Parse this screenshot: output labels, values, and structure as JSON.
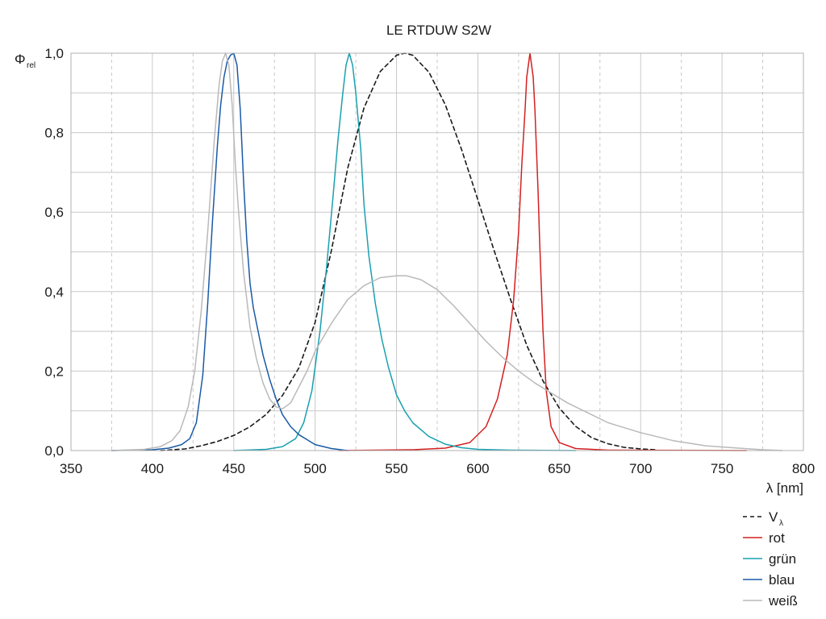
{
  "chart_data": {
    "type": "line",
    "title": "LE RTDUW S2W",
    "ylabel": {
      "symbol": "Φ",
      "subscript": "rel"
    },
    "xlabel": "λ [nm]",
    "xlim": [
      350,
      800
    ],
    "ylim": [
      0,
      1.0
    ],
    "x_ticks": [
      350,
      400,
      450,
      500,
      550,
      600,
      650,
      700,
      750,
      800
    ],
    "x_tick_labels": [
      "350",
      "400",
      "450",
      "500",
      "550",
      "600",
      "650",
      "700",
      "750",
      "800"
    ],
    "y_ticks": [
      0,
      0.2,
      0.4,
      0.6,
      0.8,
      1.0
    ],
    "y_tick_labels": [
      "0,0",
      "0,2",
      "0,4",
      "0,6",
      "0,8",
      "1,0"
    ],
    "grid": true,
    "legend_position": "bottom-right",
    "series": [
      {
        "name": "V",
        "name_sub": "λ",
        "color": "#1a1a1a",
        "dash": true,
        "points": [
          [
            405,
            0
          ],
          [
            420,
            0.004
          ],
          [
            430,
            0.012
          ],
          [
            440,
            0.023
          ],
          [
            450,
            0.038
          ],
          [
            460,
            0.06
          ],
          [
            470,
            0.091
          ],
          [
            480,
            0.139
          ],
          [
            490,
            0.208
          ],
          [
            500,
            0.323
          ],
          [
            510,
            0.503
          ],
          [
            520,
            0.71
          ],
          [
            530,
            0.862
          ],
          [
            540,
            0.954
          ],
          [
            550,
            0.995
          ],
          [
            555,
            1.0
          ],
          [
            560,
            0.995
          ],
          [
            570,
            0.952
          ],
          [
            580,
            0.87
          ],
          [
            590,
            0.757
          ],
          [
            600,
            0.631
          ],
          [
            610,
            0.503
          ],
          [
            620,
            0.381
          ],
          [
            630,
            0.265
          ],
          [
            640,
            0.175
          ],
          [
            650,
            0.107
          ],
          [
            660,
            0.061
          ],
          [
            670,
            0.032
          ],
          [
            680,
            0.017
          ],
          [
            690,
            0.008
          ],
          [
            700,
            0.004
          ],
          [
            710,
            0.002
          ]
        ]
      },
      {
        "name": "rot",
        "color": "#d42020",
        "dash": false,
        "points": [
          [
            515,
            0
          ],
          [
            560,
            0.002
          ],
          [
            580,
            0.006
          ],
          [
            595,
            0.02
          ],
          [
            605,
            0.06
          ],
          [
            612,
            0.13
          ],
          [
            618,
            0.24
          ],
          [
            622,
            0.38
          ],
          [
            625,
            0.55
          ],
          [
            627,
            0.72
          ],
          [
            629,
            0.86
          ],
          [
            630,
            0.94
          ],
          [
            632,
            1.0
          ],
          [
            634,
            0.94
          ],
          [
            635,
            0.86
          ],
          [
            637,
            0.65
          ],
          [
            638,
            0.52
          ],
          [
            640,
            0.3
          ],
          [
            642,
            0.15
          ],
          [
            645,
            0.06
          ],
          [
            650,
            0.02
          ],
          [
            660,
            0.005
          ],
          [
            680,
            0.001
          ],
          [
            765,
            0
          ]
        ]
      },
      {
        "name": "grün",
        "color": "#1aa0b0",
        "dash": false,
        "points": [
          [
            450,
            0
          ],
          [
            470,
            0.003
          ],
          [
            480,
            0.01
          ],
          [
            488,
            0.03
          ],
          [
            493,
            0.07
          ],
          [
            498,
            0.15
          ],
          [
            503,
            0.3
          ],
          [
            507,
            0.46
          ],
          [
            511,
            0.64
          ],
          [
            514,
            0.78
          ],
          [
            517,
            0.9
          ],
          [
            519,
            0.97
          ],
          [
            521,
            1.0
          ],
          [
            523,
            0.97
          ],
          [
            525,
            0.9
          ],
          [
            528,
            0.76
          ],
          [
            530,
            0.62
          ],
          [
            533,
            0.49
          ],
          [
            537,
            0.37
          ],
          [
            541,
            0.28
          ],
          [
            545,
            0.21
          ],
          [
            550,
            0.14
          ],
          [
            555,
            0.1
          ],
          [
            560,
            0.07
          ],
          [
            570,
            0.035
          ],
          [
            580,
            0.016
          ],
          [
            590,
            0.007
          ],
          [
            600,
            0.003
          ],
          [
            620,
            0.001
          ],
          [
            660,
            0
          ]
        ]
      },
      {
        "name": "blau",
        "color": "#1a5aa6",
        "dash": false,
        "points": [
          [
            375,
            0
          ],
          [
            400,
            0.002
          ],
          [
            410,
            0.006
          ],
          [
            418,
            0.015
          ],
          [
            423,
            0.03
          ],
          [
            427,
            0.07
          ],
          [
            431,
            0.19
          ],
          [
            434,
            0.37
          ],
          [
            437,
            0.58
          ],
          [
            440,
            0.77
          ],
          [
            442,
            0.87
          ],
          [
            444,
            0.94
          ],
          [
            446,
            0.98
          ],
          [
            448,
            0.995
          ],
          [
            450,
            1.0
          ],
          [
            452,
            0.97
          ],
          [
            454,
            0.86
          ],
          [
            456,
            0.68
          ],
          [
            458,
            0.53
          ],
          [
            460,
            0.42
          ],
          [
            462,
            0.36
          ],
          [
            465,
            0.3
          ],
          [
            468,
            0.24
          ],
          [
            472,
            0.18
          ],
          [
            476,
            0.13
          ],
          [
            480,
            0.09
          ],
          [
            485,
            0.06
          ],
          [
            490,
            0.04
          ],
          [
            500,
            0.015
          ],
          [
            510,
            0.005
          ],
          [
            520,
            0
          ]
        ]
      },
      {
        "name": "weiß",
        "color": "#b9b9b9",
        "dash": false,
        "points": [
          [
            375,
            0
          ],
          [
            395,
            0.003
          ],
          [
            405,
            0.01
          ],
          [
            412,
            0.025
          ],
          [
            417,
            0.05
          ],
          [
            422,
            0.11
          ],
          [
            426,
            0.2
          ],
          [
            430,
            0.35
          ],
          [
            434,
            0.55
          ],
          [
            438,
            0.78
          ],
          [
            441,
            0.92
          ],
          [
            443,
            0.98
          ],
          [
            445,
            1.0
          ],
          [
            447,
            0.97
          ],
          [
            449,
            0.87
          ],
          [
            451,
            0.72
          ],
          [
            453,
            0.6
          ],
          [
            456,
            0.45
          ],
          [
            460,
            0.31
          ],
          [
            464,
            0.23
          ],
          [
            468,
            0.17
          ],
          [
            472,
            0.13
          ],
          [
            476,
            0.11
          ],
          [
            480,
            0.105
          ],
          [
            485,
            0.12
          ],
          [
            490,
            0.16
          ],
          [
            495,
            0.2
          ],
          [
            500,
            0.25
          ],
          [
            510,
            0.32
          ],
          [
            520,
            0.38
          ],
          [
            530,
            0.415
          ],
          [
            540,
            0.435
          ],
          [
            550,
            0.44
          ],
          [
            556,
            0.44
          ],
          [
            565,
            0.43
          ],
          [
            575,
            0.405
          ],
          [
            585,
            0.365
          ],
          [
            595,
            0.32
          ],
          [
            605,
            0.275
          ],
          [
            615,
            0.235
          ],
          [
            625,
            0.2
          ],
          [
            635,
            0.17
          ],
          [
            645,
            0.145
          ],
          [
            655,
            0.12
          ],
          [
            665,
            0.1
          ],
          [
            680,
            0.07
          ],
          [
            700,
            0.045
          ],
          [
            720,
            0.025
          ],
          [
            740,
            0.012
          ],
          [
            760,
            0.006
          ],
          [
            775,
            0.002
          ],
          [
            787,
            0
          ]
        ]
      }
    ]
  }
}
